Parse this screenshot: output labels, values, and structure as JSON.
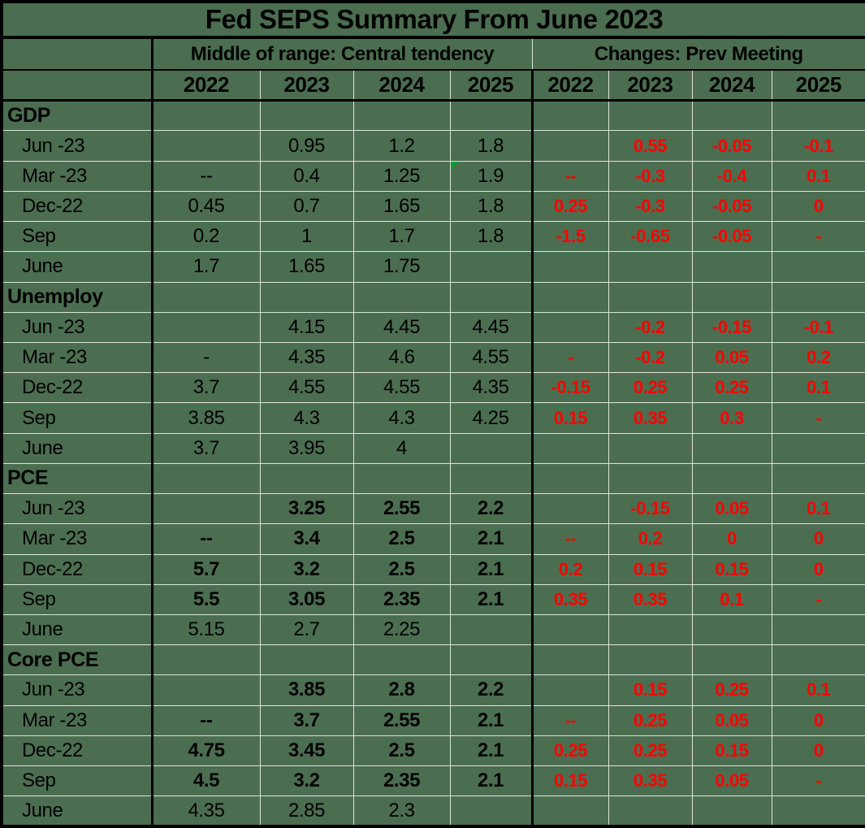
{
  "title": "Fed SEPS Summary From June 2023",
  "colors": {
    "background": "#4b6e50",
    "gridline": "#dfe2da",
    "border": "#000000",
    "text": "#000000",
    "change_text": "#ff0000",
    "error_flag": "#0b9e33"
  },
  "chart_data": {
    "type": "table",
    "title": "Fed SEPS Summary From June 2023",
    "group_headers": [
      "Middle of range: Central tendency",
      "Changes: Prev Meeting"
    ],
    "year_columns": [
      "2022",
      "2023",
      "2024",
      "2025",
      "2022",
      "2023",
      "2024",
      "2025"
    ],
    "sections": [
      {
        "name": "GDP",
        "rows": [
          {
            "label": "Jun -23",
            "bold": false,
            "ct": [
              "",
              "0.95",
              "1.2",
              "1.8"
            ],
            "chg": [
              "",
              "0.55",
              "-0.05",
              "-0.1"
            ]
          },
          {
            "label": "Mar -23",
            "bold": false,
            "ct": [
              "--",
              "0.4",
              "1.25",
              "1.9"
            ],
            "chg": [
              "--",
              "-0.3",
              "-0.4",
              "0.1"
            ],
            "flag_col": 3
          },
          {
            "label": "Dec-22",
            "bold": false,
            "ct": [
              "0.45",
              "0.7",
              "1.65",
              "1.8"
            ],
            "chg": [
              "0.25",
              "-0.3",
              "-0.05",
              "0"
            ]
          },
          {
            "label": "Sep",
            "bold": false,
            "ct": [
              "0.2",
              "1",
              "1.7",
              "1.8"
            ],
            "chg": [
              "-1.5",
              "-0.65",
              "-0.05",
              "-"
            ]
          },
          {
            "label": "June",
            "bold": false,
            "ct": [
              "1.7",
              "1.65",
              "1.75",
              ""
            ],
            "chg": [
              "",
              "",
              "",
              ""
            ]
          }
        ]
      },
      {
        "name": "Unemploy",
        "rows": [
          {
            "label": "Jun -23",
            "bold": false,
            "ct": [
              "",
              "4.15",
              "4.45",
              "4.45"
            ],
            "chg": [
              "",
              "-0.2",
              "-0.15",
              "-0.1"
            ]
          },
          {
            "label": "Mar -23",
            "bold": false,
            "ct": [
              "-",
              "4.35",
              "4.6",
              "4.55"
            ],
            "chg": [
              "-",
              "-0.2",
              "0.05",
              "0.2"
            ]
          },
          {
            "label": "Dec-22",
            "bold": false,
            "ct": [
              "3.7",
              "4.55",
              "4.55",
              "4.35"
            ],
            "chg": [
              "-0.15",
              "0.25",
              "0.25",
              "0.1"
            ]
          },
          {
            "label": "Sep",
            "bold": false,
            "ct": [
              "3.85",
              "4.3",
              "4.3",
              "4.25"
            ],
            "chg": [
              "0.15",
              "0.35",
              "0.3",
              "-"
            ]
          },
          {
            "label": "June",
            "bold": false,
            "ct": [
              "3.7",
              "3.95",
              "4",
              ""
            ],
            "chg": [
              "",
              "",
              "",
              ""
            ]
          }
        ]
      },
      {
        "name": "PCE",
        "rows": [
          {
            "label": "Jun -23",
            "bold": true,
            "ct": [
              "",
              "3.25",
              "2.55",
              "2.2"
            ],
            "chg": [
              "",
              "-0.15",
              "0.05",
              "0.1"
            ]
          },
          {
            "label": "Mar -23",
            "bold": true,
            "ct": [
              "--",
              "3.4",
              "2.5",
              "2.1"
            ],
            "chg": [
              "--",
              "0.2",
              "0",
              "0"
            ]
          },
          {
            "label": "Dec-22",
            "bold": true,
            "ct": [
              "5.7",
              "3.2",
              "2.5",
              "2.1"
            ],
            "chg": [
              "0.2",
              "0.15",
              "0.15",
              "0"
            ]
          },
          {
            "label": "Sep",
            "bold": true,
            "ct": [
              "5.5",
              "3.05",
              "2.35",
              "2.1"
            ],
            "chg": [
              "0.35",
              "0.35",
              "0.1",
              "-"
            ]
          },
          {
            "label": "June",
            "bold": false,
            "ct": [
              "5.15",
              "2.7",
              "2.25",
              ""
            ],
            "chg": [
              "",
              "",
              "",
              ""
            ]
          }
        ]
      },
      {
        "name": "Core PCE",
        "rows": [
          {
            "label": "Jun -23",
            "bold": true,
            "ct": [
              "",
              "3.85",
              "2.8",
              "2.2"
            ],
            "chg": [
              "",
              "0.15",
              "0.25",
              "0.1"
            ]
          },
          {
            "label": "Mar -23",
            "bold": true,
            "ct": [
              "--",
              "3.7",
              "2.55",
              "2.1"
            ],
            "chg": [
              "--",
              "0.25",
              "0.05",
              "0"
            ]
          },
          {
            "label": "Dec-22",
            "bold": true,
            "ct": [
              "4.75",
              "3.45",
              "2.5",
              "2.1"
            ],
            "chg": [
              "0.25",
              "0.25",
              "0.15",
              "0"
            ]
          },
          {
            "label": "Sep",
            "bold": true,
            "ct": [
              "4.5",
              "3.2",
              "2.35",
              "2.1"
            ],
            "chg": [
              "0.15",
              "0.35",
              "0.05",
              "-"
            ]
          },
          {
            "label": "June",
            "bold": false,
            "ct": [
              "4.35",
              "2.85",
              "2.3",
              ""
            ],
            "chg": [
              "",
              "",
              "",
              ""
            ]
          }
        ]
      }
    ]
  }
}
